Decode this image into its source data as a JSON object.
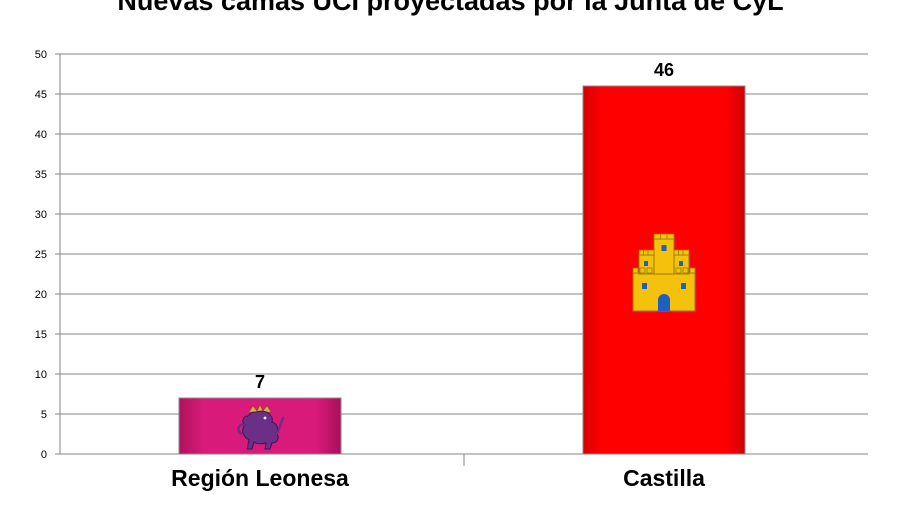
{
  "chart_data": {
    "type": "bar",
    "title": "Nuevas camas UCI proyectadas por la Junta de CyL",
    "categories": [
      "Región Leonesa",
      "Castilla"
    ],
    "values": [
      7,
      46
    ],
    "data_labels": [
      "7",
      "46"
    ],
    "ylim": [
      0,
      50
    ],
    "yticks": [
      0,
      5,
      10,
      15,
      20,
      25,
      30,
      35,
      40,
      45,
      50
    ],
    "grid": true,
    "legend": "none",
    "bar_colors": [
      "#d81b7a",
      "#ff0000"
    ],
    "bar_emblems": [
      "lion-emblem-icon",
      "castle-emblem-icon"
    ],
    "xlabel": "",
    "ylabel": ""
  }
}
